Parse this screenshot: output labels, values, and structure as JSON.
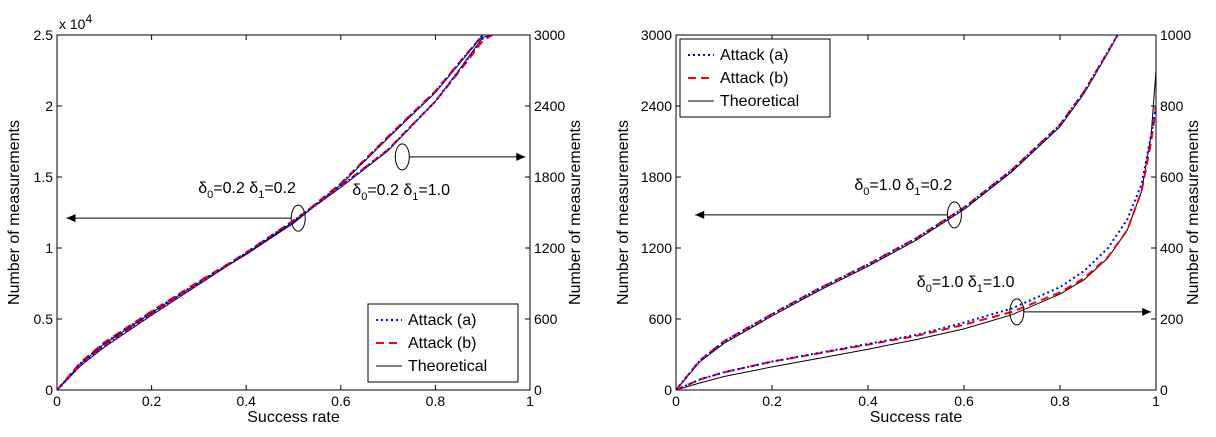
{
  "chart_data": [
    {
      "type": "line",
      "xlabel": "Success rate",
      "ylabel_left": "Number of measurements",
      "ylabel_right": "Number of measurements",
      "xlim": [
        0,
        1
      ],
      "ylim_left": [
        0,
        25000
      ],
      "ylim_right": [
        0,
        3000
      ],
      "left_multiplier": "x 10",
      "left_multiplier_exp": "4",
      "x_ticks": [
        0,
        0.2,
        0.4,
        0.6,
        0.8,
        1
      ],
      "x_tick_labels": [
        "0",
        "0.2",
        "0.4",
        "0.6",
        "0.8",
        "1"
      ],
      "y_left_ticks": [
        0,
        5000,
        10000,
        15000,
        20000,
        25000
      ],
      "y_left_tick_labels": [
        "0",
        "0.5",
        "1",
        "1.5",
        "2",
        "2.5"
      ],
      "y_right_ticks": [
        0,
        600,
        1200,
        1800,
        2400,
        3000
      ],
      "y_right_tick_labels": [
        "0",
        "600",
        "1200",
        "1800",
        "2400",
        "3000"
      ],
      "grid": false,
      "legend_position": "bottom-right",
      "legend": [
        {
          "label": "Attack (a)",
          "color": "#0000ff",
          "style": "dotted"
        },
        {
          "label": "Attack (b)",
          "color": "#ff0000",
          "style": "dashed"
        },
        {
          "label": "Theoretical",
          "color": "#000000",
          "style": "solid"
        }
      ],
      "groups": [
        {
          "axis": "left",
          "x": [
            0,
            0.05,
            0.1,
            0.2,
            0.3,
            0.4,
            0.5,
            0.6,
            0.7,
            0.8,
            0.85,
            0.9
          ],
          "series": [
            {
              "legend_index": 0,
              "values": [
                0,
                1900,
                3300,
                5500,
                7600,
                9600,
                11800,
                14500,
                17800,
                21000,
                23000,
                25000
              ]
            },
            {
              "legend_index": 1,
              "values": [
                0,
                1950,
                3350,
                5550,
                7650,
                9650,
                11850,
                14550,
                17850,
                21050,
                23050,
                25000
              ]
            },
            {
              "legend_index": 2,
              "values": [
                0,
                1850,
                3250,
                5450,
                7550,
                9550,
                11750,
                14450,
                17750,
                20950,
                22950,
                24950
              ]
            }
          ],
          "annotation": {
            "d0": "0.2",
            "d1": "0.2",
            "x": 0.51,
            "y": 12100,
            "arrow_to_x": 0.02
          }
        },
        {
          "axis": "right",
          "x": [
            0,
            0.05,
            0.1,
            0.2,
            0.3,
            0.4,
            0.5,
            0.6,
            0.7,
            0.8,
            0.85,
            0.9,
            0.92
          ],
          "series": [
            {
              "legend_index": 0,
              "values": [
                0,
                210,
                370,
                640,
                900,
                1160,
                1430,
                1720,
                2030,
                2440,
                2700,
                2970,
                3000
              ]
            },
            {
              "legend_index": 1,
              "values": [
                0,
                212,
                372,
                642,
                902,
                1162,
                1432,
                1722,
                2032,
                2440,
                2690,
                2950,
                3000
              ]
            },
            {
              "legend_index": 2,
              "values": [
                0,
                205,
                362,
                632,
                892,
                1152,
                1422,
                1712,
                2022,
                2440,
                2705,
                2980,
                3000
              ]
            }
          ],
          "annotation": {
            "d0": "0.2",
            "d1": "1.0",
            "x": 0.73,
            "y": 1970,
            "arrow_to_x": 0.99
          }
        }
      ]
    },
    {
      "type": "line",
      "xlabel": "Success rate",
      "ylabel_left": "Number of measurements",
      "ylabel_right": "Number of measurements",
      "xlim": [
        0,
        1
      ],
      "ylim_left": [
        0,
        3000
      ],
      "ylim_right": [
        0,
        1000
      ],
      "x_ticks": [
        0,
        0.2,
        0.4,
        0.6,
        0.8,
        1
      ],
      "x_tick_labels": [
        "0",
        "0.2",
        "0.4",
        "0.6",
        "0.8",
        "1"
      ],
      "y_left_ticks": [
        0,
        600,
        1200,
        1800,
        2400,
        3000
      ],
      "y_left_tick_labels": [
        "0",
        "600",
        "1200",
        "1800",
        "2400",
        "3000"
      ],
      "y_right_ticks": [
        0,
        200,
        400,
        600,
        800,
        1000
      ],
      "y_right_tick_labels": [
        "0",
        "200",
        "400",
        "600",
        "800",
        "1000"
      ],
      "grid": false,
      "legend_position": "top-left",
      "legend": [
        {
          "label": "Attack (a)",
          "color": "#0000ff",
          "style": "dotted"
        },
        {
          "label": "Attack (b)",
          "color": "#ff0000",
          "style": "dashed"
        },
        {
          "label": "Theoretical",
          "color": "#000000",
          "style": "solid"
        }
      ],
      "groups": [
        {
          "axis": "left",
          "x": [
            0,
            0.05,
            0.1,
            0.2,
            0.3,
            0.4,
            0.5,
            0.6,
            0.7,
            0.8,
            0.85,
            0.9,
            0.92
          ],
          "series": [
            {
              "legend_index": 0,
              "values": [
                0,
                250,
                410,
                640,
                860,
                1060,
                1280,
                1540,
                1860,
                2240,
                2520,
                2860,
                3000
              ]
            },
            {
              "legend_index": 1,
              "values": [
                0,
                252,
                412,
                642,
                862,
                1062,
                1282,
                1542,
                1862,
                2242,
                2520,
                2860,
                3000
              ]
            },
            {
              "legend_index": 2,
              "values": [
                0,
                240,
                395,
                625,
                845,
                1045,
                1265,
                1525,
                1845,
                2225,
                2505,
                2850,
                3000
              ]
            }
          ],
          "annotation": {
            "d0": "1.0",
            "d1": "0.2",
            "x": 0.58,
            "y": 1480,
            "arrow_to_x": 0.04
          }
        },
        {
          "axis": "right",
          "x": [
            0,
            0.05,
            0.1,
            0.2,
            0.3,
            0.4,
            0.5,
            0.6,
            0.7,
            0.8,
            0.85,
            0.9,
            0.94,
            0.97,
            0.99,
            1.0
          ],
          "series": [
            {
              "legend_index": 0,
              "values": [
                0,
                30,
                50,
                80,
                105,
                130,
                155,
                190,
                230,
                290,
                335,
                400,
                480,
                580,
                720,
                800
              ]
            },
            {
              "legend_index": 1,
              "values": [
                0,
                30,
                50,
                80,
                104,
                128,
                152,
                184,
                220,
                275,
                315,
                375,
                450,
                560,
                700,
                800
              ]
            },
            {
              "legend_index": 2,
              "values": [
                0,
                20,
                38,
                65,
                90,
                115,
                142,
                172,
                212,
                270,
                310,
                372,
                450,
                560,
                720,
                900
              ]
            }
          ],
          "annotation": {
            "d0": "1.0",
            "d1": "1.0",
            "x": 0.71,
            "y": 220,
            "arrow_to_x": 0.99
          }
        }
      ]
    }
  ]
}
